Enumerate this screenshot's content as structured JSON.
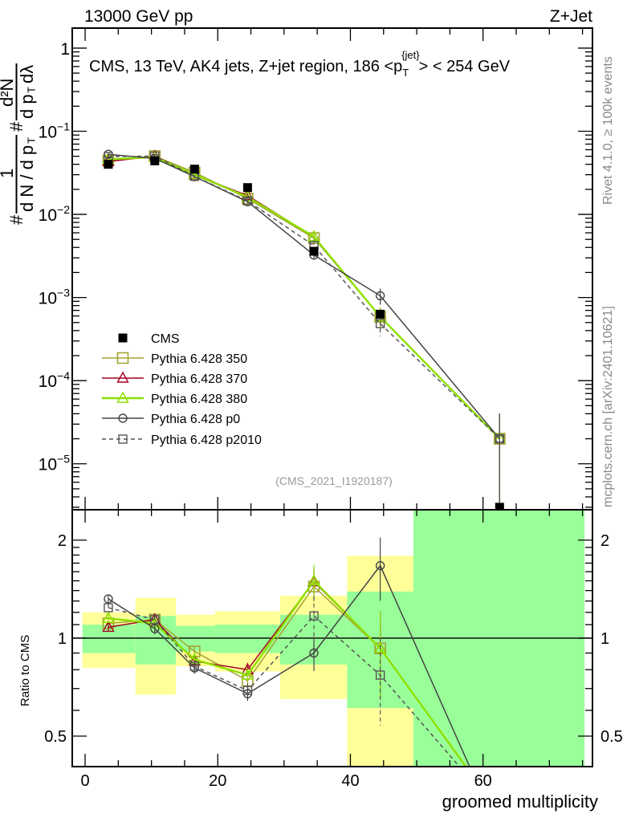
{
  "header": {
    "left": "13000 GeV pp",
    "right": "Z+Jet"
  },
  "side_text": {
    "upper": "Rivet 4.1.0, ≥ 100k events",
    "lower": "mcplots.cern.ch [arXiv:2401.10621]"
  },
  "chart_data": [
    {
      "type": "line",
      "panel": "main",
      "title": "CMS, 13 TeV, AK4 jets, Z+jet region, 186 <p_T^{jet}> < 254 GeV",
      "title_parts": {
        "main": "CMS, 13 TeV, AK4 jets, Z+jet region, 186 <p",
        "sub": "T",
        "sup": "{jet}",
        "tail": "> < 254 GeV"
      },
      "annotation": "(CMS_2021_I1920187)",
      "ylabel_parts": {
        "hash": "#",
        "one": "1",
        "denom": "d N / d p",
        "T": "T",
        "num": "d²N",
        "den2": "d p",
        "lambda": "dλ"
      },
      "yscale": "log",
      "ylim": [
        2.8e-06,
        1.74
      ],
      "xlim": [
        -1.94,
        76.5
      ],
      "yticks": [
        {
          "v": 1,
          "label": "1"
        },
        {
          "v": 0.1,
          "label": "10",
          "exp": "−1"
        },
        {
          "v": 0.01,
          "label": "10",
          "exp": "−2"
        },
        {
          "v": 0.001,
          "label": "10",
          "exp": "−3"
        },
        {
          "v": 0.0001,
          "label": "10",
          "exp": "−4"
        },
        {
          "v": 1e-05,
          "label": "10",
          "exp": "−5"
        }
      ],
      "x": [
        3.5,
        10.5,
        16.5,
        24.5,
        34.5,
        44.5,
        62.5
      ],
      "data": {
        "name": "CMS",
        "values": [
          0.04,
          0.044,
          0.035,
          0.021,
          0.0036,
          0.00063,
          3e-06
        ]
      },
      "legend_placement": "middle-left",
      "series": [
        {
          "name": "Pythia 6.428 350",
          "color": "#a3a332",
          "marker": "square",
          "dashed": false,
          "values": [
            0.0444,
            0.0502,
            0.0319,
            0.0155,
            0.00518,
            0.000586,
            2e-05
          ]
        },
        {
          "name": "Pythia 6.428 370",
          "color": "#a50021",
          "marker": "triangle",
          "dashed": false,
          "values": [
            0.0432,
            0.0502,
            0.0298,
            0.0168,
            0.00536,
            0.000586,
            2e-05
          ]
        },
        {
          "name": "Pythia 6.428 380",
          "color": "#8ee000",
          "marker": "triangle",
          "dashed": false,
          "values": [
            0.046,
            0.0488,
            0.0301,
            0.0162,
            0.0054,
            0.000586,
            2e-05
          ]
        },
        {
          "name": "Pythia 6.428 p0",
          "color": "#444444",
          "marker": "circle",
          "dashed": false,
          "values": [
            0.0528,
            0.0471,
            0.0284,
            0.0142,
            0.00324,
            0.00105,
            2e-05
          ]
        },
        {
          "name": "Pythia 6.428 p2010",
          "color": "#555555",
          "marker": "smallsquare",
          "dashed": true,
          "values": [
            0.0496,
            0.0502,
            0.0287,
            0.0145,
            0.00421,
            0.000485,
            2e-05
          ]
        }
      ]
    },
    {
      "type": "line",
      "panel": "ratio",
      "ylabel": "Ratio to CMS",
      "xlabel": "groomed multiplicity",
      "yscale": "log",
      "ylim": [
        0.403,
        2.48
      ],
      "xlim": [
        -1.94,
        76.5
      ],
      "xticks": [
        {
          "v": 0,
          "label": "0"
        },
        {
          "v": 20,
          "label": "20"
        },
        {
          "v": 40,
          "label": "40"
        },
        {
          "v": 60,
          "label": "60"
        }
      ],
      "yticks": [
        {
          "v": 0.5,
          "label": "0.5"
        },
        {
          "v": 1,
          "label": "1"
        },
        {
          "v": 2,
          "label": "2"
        }
      ],
      "bins": [
        [
          -0.4,
          7.6
        ],
        [
          7.6,
          13.7
        ],
        [
          13.7,
          19.6
        ],
        [
          19.6,
          29.4
        ],
        [
          29.4,
          39.5
        ],
        [
          39.5,
          49.5
        ],
        [
          49.5,
          75.3
        ]
      ],
      "band_inner": {
        "color": "#99ff99",
        "ranges": [
          [
            0.9,
            1.1
          ],
          [
            0.83,
            1.17
          ],
          [
            0.91,
            1.09
          ],
          [
            0.9,
            1.1
          ],
          [
            0.83,
            1.18
          ],
          [
            0.61,
            1.39
          ],
          [
            0.3,
            3.0
          ]
        ]
      },
      "band_outer": {
        "color": "#ffff99",
        "ranges": [
          [
            0.81,
            1.2
          ],
          [
            0.67,
            1.33
          ],
          [
            0.82,
            1.18
          ],
          [
            0.79,
            1.21
          ],
          [
            0.65,
            1.35
          ],
          [
            0.3,
            1.79
          ],
          [
            0.3,
            3.0
          ]
        ]
      },
      "x": [
        3.5,
        10.5,
        16.5,
        24.5,
        34.5,
        44.5,
        62.5
      ],
      "series": [
        {
          "name": "Pythia 6.428 350",
          "values": [
            1.11,
            1.14,
            0.91,
            0.74,
            1.44,
            0.93,
            0.29
          ],
          "rel_err": [
            0.03,
            0.03,
            0.04,
            0.04,
            0.1,
            0.2,
            0
          ]
        },
        {
          "name": "Pythia 6.428 370",
          "values": [
            1.08,
            1.14,
            0.85,
            0.8,
            1.49,
            0.93,
            0.29
          ],
          "rel_err": [
            0.03,
            0.03,
            0.04,
            0.05,
            0.1,
            0.3,
            0
          ]
        },
        {
          "name": "Pythia 6.428 380",
          "values": [
            1.15,
            1.11,
            0.86,
            0.77,
            1.5,
            0.93,
            0.29
          ],
          "rel_err": [
            0.03,
            0.03,
            0.04,
            0.04,
            0.12,
            0.3,
            0
          ]
        },
        {
          "name": "Pythia 6.428 p0",
          "values": [
            1.32,
            1.07,
            0.81,
            0.675,
            0.9,
            1.67,
            0.25
          ],
          "rel_err": [
            0.03,
            0.04,
            0.04,
            0.05,
            0.12,
            0.22,
            0
          ]
        },
        {
          "name": "Pythia 6.428 p2010",
          "values": [
            1.24,
            1.14,
            0.82,
            0.69,
            1.17,
            0.77,
            0.29
          ],
          "rel_err": [
            0.03,
            0.03,
            0.04,
            0.05,
            0.15,
            0.3,
            0
          ]
        }
      ]
    }
  ]
}
